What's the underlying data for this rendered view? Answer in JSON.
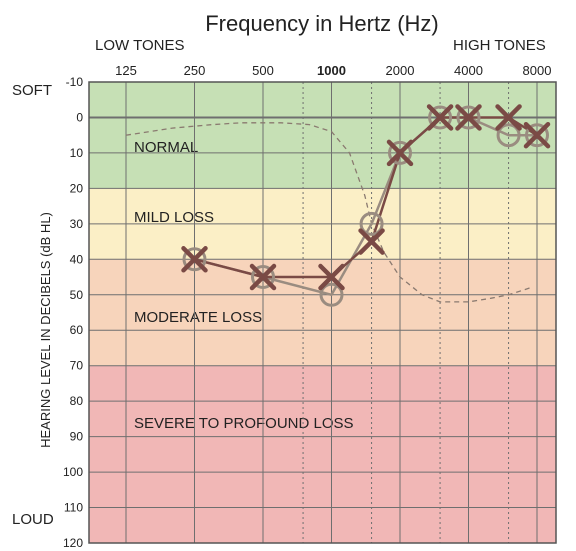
{
  "chart_data": {
    "type": "line",
    "title": "Frequency in Hertz (Hz)",
    "ylabel": "HEARING LEVEL IN DECIBELS (dB HL)",
    "corner_labels": {
      "top_left": "LOW TONES",
      "top_right": "HIGH TONES",
      "y_top": "SOFT",
      "y_bottom": "LOUD"
    },
    "x_scale": "log2",
    "x_ticks": [
      {
        "value": 125,
        "label": "125",
        "bold": false
      },
      {
        "value": 250,
        "label": "250",
        "bold": false
      },
      {
        "value": 500,
        "label": "500",
        "bold": false
      },
      {
        "value": 1000,
        "label": "1000",
        "bold": true
      },
      {
        "value": 2000,
        "label": "2000",
        "bold": false
      },
      {
        "value": 4000,
        "label": "4000",
        "bold": false
      },
      {
        "value": 8000,
        "label": "8000",
        "bold": false
      }
    ],
    "x_minor_lines": [
      750,
      1500,
      3000,
      6000
    ],
    "xlim": [
      125,
      8000
    ],
    "ylim": [
      -10,
      120
    ],
    "y_inverted": true,
    "y_ticks": [
      -10,
      0,
      10,
      20,
      30,
      40,
      50,
      60,
      70,
      80,
      90,
      100,
      110,
      120
    ],
    "grid": true,
    "zones": [
      {
        "label": "NORMAL",
        "from": -10,
        "to": 20,
        "color": "#c6e0b5"
      },
      {
        "label": "MILD LOSS",
        "from": 20,
        "to": 40,
        "color": "#fbefc6"
      },
      {
        "label": "MODERATE LOSS",
        "from": 40,
        "to": 70,
        "color": "#f7d4bb"
      },
      {
        "label": "SEVERE TO PROFOUND LOSS",
        "from": 70,
        "to": 120,
        "color": "#f1b7b6"
      }
    ],
    "series": [
      {
        "marker": "x",
        "color": "#7a4a45",
        "x": [
          250,
          500,
          1000,
          1500,
          2000,
          3000,
          4000,
          6000,
          8000
        ],
        "y": [
          40,
          45,
          45,
          35,
          10,
          0,
          0,
          0,
          5
        ]
      },
      {
        "marker": "o",
        "color": "#9a8c80",
        "x": [
          250,
          500,
          1000,
          1500,
          2000,
          3000,
          4000,
          6000,
          8000
        ],
        "y": [
          40,
          45,
          50,
          30,
          10,
          0,
          0,
          5,
          5
        ]
      }
    ],
    "reference_curve": {
      "style": "dashed",
      "color": "#8a7a70",
      "x": [
        125,
        200,
        300,
        400,
        600,
        800,
        1000,
        1200,
        1400,
        1500,
        1700,
        2000,
        2500,
        3000,
        4000,
        5000,
        6000,
        7500
      ],
      "y": [
        5,
        3,
        2,
        1.5,
        1.5,
        2,
        4,
        10,
        22,
        30,
        38,
        45,
        50,
        52,
        52,
        51,
        50,
        48
      ]
    }
  }
}
